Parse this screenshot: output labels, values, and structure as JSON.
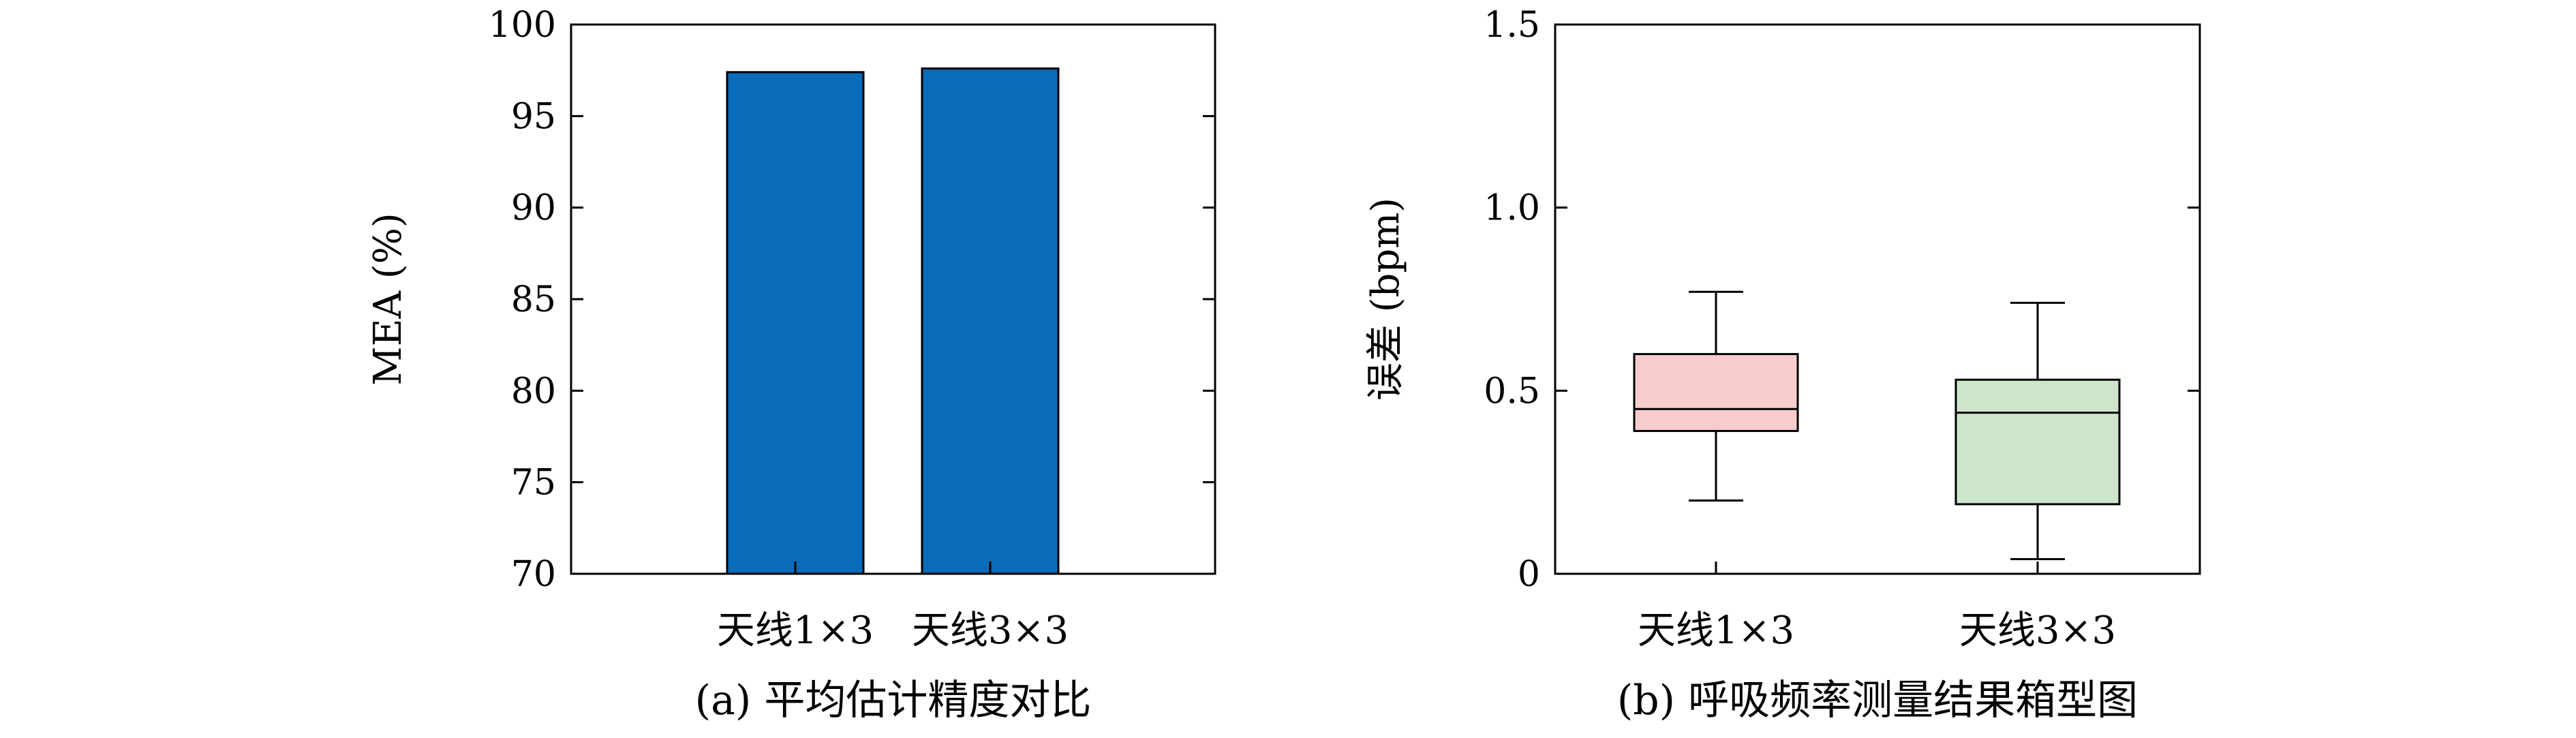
{
  "chart_data": [
    {
      "type": "bar",
      "categories": [
        "天线1×3",
        "天线3×3"
      ],
      "values": [
        97.4,
        97.6
      ],
      "ylabel": "MEA (%)",
      "xlabel": "",
      "ylim": [
        70,
        100
      ],
      "yticks": [
        70,
        75,
        80,
        85,
        90,
        95,
        100
      ],
      "ytick_labels": [
        "70",
        "75",
        "80",
        "85",
        "90",
        "95",
        "100"
      ],
      "caption": "(a) 平均估计精度对比",
      "grid": false,
      "color": "#0a6bb9"
    },
    {
      "type": "box",
      "categories": [
        "天线1×3",
        "天线3×3"
      ],
      "boxes": [
        {
          "whisker_low": 0.2,
          "q1": 0.39,
          "median": 0.45,
          "q3": 0.6,
          "whisker_high": 0.77,
          "color": "#f8cccc"
        },
        {
          "whisker_low": 0.04,
          "q1": 0.19,
          "median": 0.44,
          "q3": 0.53,
          "whisker_high": 0.74,
          "color": "#cde6cc"
        }
      ],
      "ylabel": "误差 (bpm)",
      "xlabel": "",
      "ylim": [
        0,
        1.5
      ],
      "yticks": [
        0,
        0.5,
        1.0,
        1.5
      ],
      "ytick_labels": [
        "0",
        "0.5",
        "1.0",
        "1.5"
      ],
      "caption": "(b) 呼吸频率测量结果箱型图",
      "grid": false
    }
  ]
}
